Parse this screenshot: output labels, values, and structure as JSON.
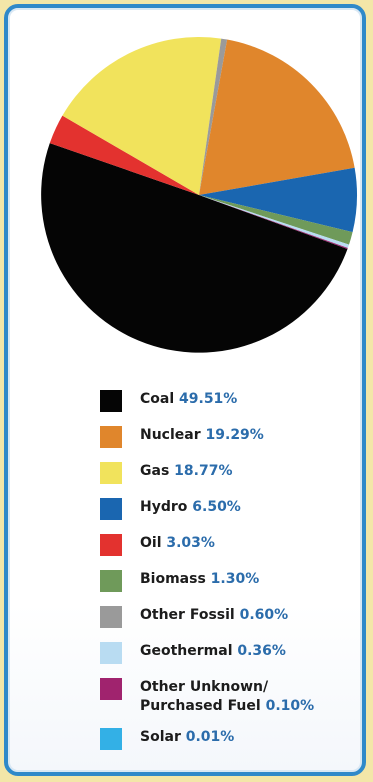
{
  "chart_data": {
    "type": "pie",
    "title": "",
    "slices": [
      {
        "label": "Coal",
        "value": 49.51,
        "value_label": "49.51%",
        "color": "#050505"
      },
      {
        "label": "Nuclear",
        "value": 19.29,
        "value_label": "19.29%",
        "color": "#e0862c"
      },
      {
        "label": "Gas",
        "value": 18.77,
        "value_label": "18.77%",
        "color": "#f1e35c"
      },
      {
        "label": "Hydro",
        "value": 6.5,
        "value_label": "6.50%",
        "color": "#1a66b0"
      },
      {
        "label": "Oil",
        "value": 3.03,
        "value_label": "3.03%",
        "color": "#e3322f"
      },
      {
        "label": "Biomass",
        "value": 1.3,
        "value_label": "1.30%",
        "color": "#6f9a5a"
      },
      {
        "label": "Other Fossil",
        "value": 0.6,
        "value_label": "0.60%",
        "color": "#9a9a9a"
      },
      {
        "label": "Geothermal",
        "value": 0.36,
        "value_label": "0.36%",
        "color": "#b9dcf2"
      },
      {
        "label": "Other Unknown/ Purchased Fuel",
        "value": 0.1,
        "value_label": "0.10%",
        "color": "#a0236e",
        "label_lines": [
          "Other Unknown/",
          "Purchased Fuel"
        ]
      },
      {
        "label": "Solar",
        "value": 0.01,
        "value_label": "0.01%",
        "color": "#33b0e6"
      }
    ],
    "legend": "bottom"
  },
  "colors": {
    "border": "#2f89c9",
    "value_text": "#2b6cab",
    "background": "#f3e6a8"
  }
}
